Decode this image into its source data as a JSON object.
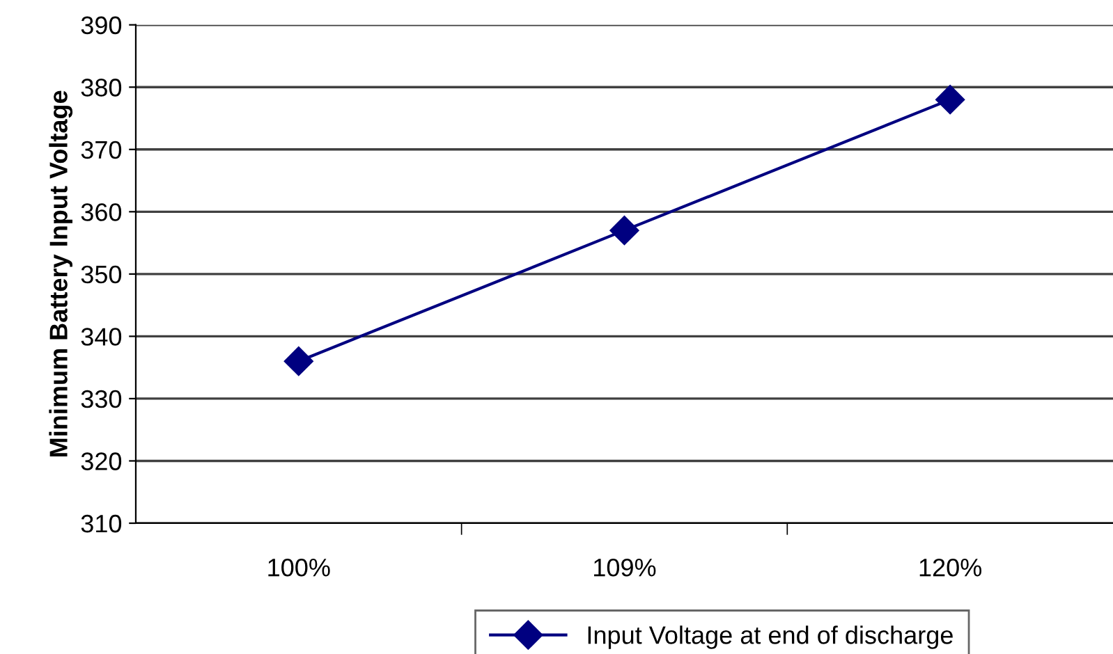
{
  "chart_data": {
    "type": "line",
    "ylabel": "Minimum Battery Input Voltage",
    "categories": [
      "100%",
      "109%",
      "120%"
    ],
    "series": [
      {
        "name": "Input Voltage at end of discharge",
        "color": "#000080",
        "values": [
          336,
          357,
          378
        ]
      }
    ],
    "ylim": [
      310,
      390
    ],
    "yticks": [
      310,
      320,
      330,
      340,
      350,
      360,
      370,
      380,
      390
    ],
    "grid": "y",
    "legend": "bottom",
    "marker": "diamond",
    "line_style": "solid"
  }
}
